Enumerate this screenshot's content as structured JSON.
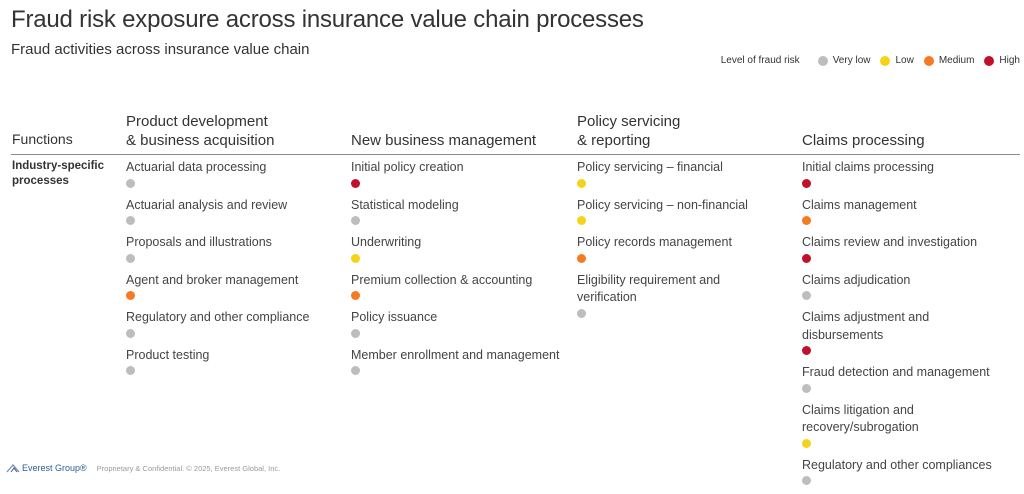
{
  "header": {
    "title": "Fraud risk exposure across insurance value chain processes",
    "subtitle": "Fraud activities across insurance value chain"
  },
  "legend": {
    "label": "Level of fraud risk",
    "items": [
      {
        "label": "Very low",
        "color": "#bdbdbd"
      },
      {
        "label": "Low",
        "color": "#f5d31b"
      },
      {
        "label": "Medium",
        "color": "#f47b20"
      },
      {
        "label": "High",
        "color": "#c0102a"
      }
    ]
  },
  "functions_label": "Functions",
  "row_label": "Industry-specific\nprocesses",
  "risk_colors": {
    "very-low": "#bdbdbd",
    "low": "#f5d31b",
    "medium": "#f47b20",
    "high": "#c0102a"
  },
  "columns": [
    {
      "header": "Product development\n& business acquisition",
      "items": [
        {
          "label": "Actuarial data processing",
          "risk": "very-low"
        },
        {
          "label": "Actuarial analysis and review",
          "risk": "very-low"
        },
        {
          "label": "Proposals and illustrations",
          "risk": "very-low"
        },
        {
          "label": "Agent and broker management",
          "risk": "medium"
        },
        {
          "label": "Regulatory and other compliance",
          "risk": "very-low"
        },
        {
          "label": "Product testing",
          "risk": "very-low"
        }
      ]
    },
    {
      "header": "New business management",
      "items": [
        {
          "label": "Initial policy creation",
          "risk": "high"
        },
        {
          "label": "Statistical modeling",
          "risk": "very-low"
        },
        {
          "label": "Underwriting",
          "risk": "low"
        },
        {
          "label": "Premium collection & accounting",
          "risk": "medium"
        },
        {
          "label": "Policy issuance",
          "risk": "very-low"
        },
        {
          "label": "Member enrollment and management",
          "risk": "very-low"
        }
      ]
    },
    {
      "header": "Policy servicing\n& reporting",
      "items": [
        {
          "label": "Policy servicing – financial",
          "risk": "low"
        },
        {
          "label": "Policy servicing – non-financial",
          "risk": "low"
        },
        {
          "label": "Policy records management",
          "risk": "medium"
        },
        {
          "label": "Eligibility requirement and\nverification",
          "risk": "very-low"
        }
      ]
    },
    {
      "header": "Claims processing",
      "items": [
        {
          "label": "Initial claims processing",
          "risk": "high"
        },
        {
          "label": "Claims management",
          "risk": "medium"
        },
        {
          "label": "Claims review and investigation",
          "risk": "high"
        },
        {
          "label": "Claims adjudication",
          "risk": "very-low"
        },
        {
          "label": "Claims adjustment and\ndisbursements",
          "risk": "high"
        },
        {
          "label": "Fraud detection and management",
          "risk": "very-low"
        },
        {
          "label": "Claims litigation and\nrecovery/subrogation",
          "risk": "low"
        },
        {
          "label": "Regulatory and other compliances",
          "risk": "very-low"
        }
      ]
    }
  ],
  "footer": {
    "logo_text": "Everest Group®",
    "copyright": "Proprietary & Confidential. © 2025, Everest Global, Inc."
  }
}
